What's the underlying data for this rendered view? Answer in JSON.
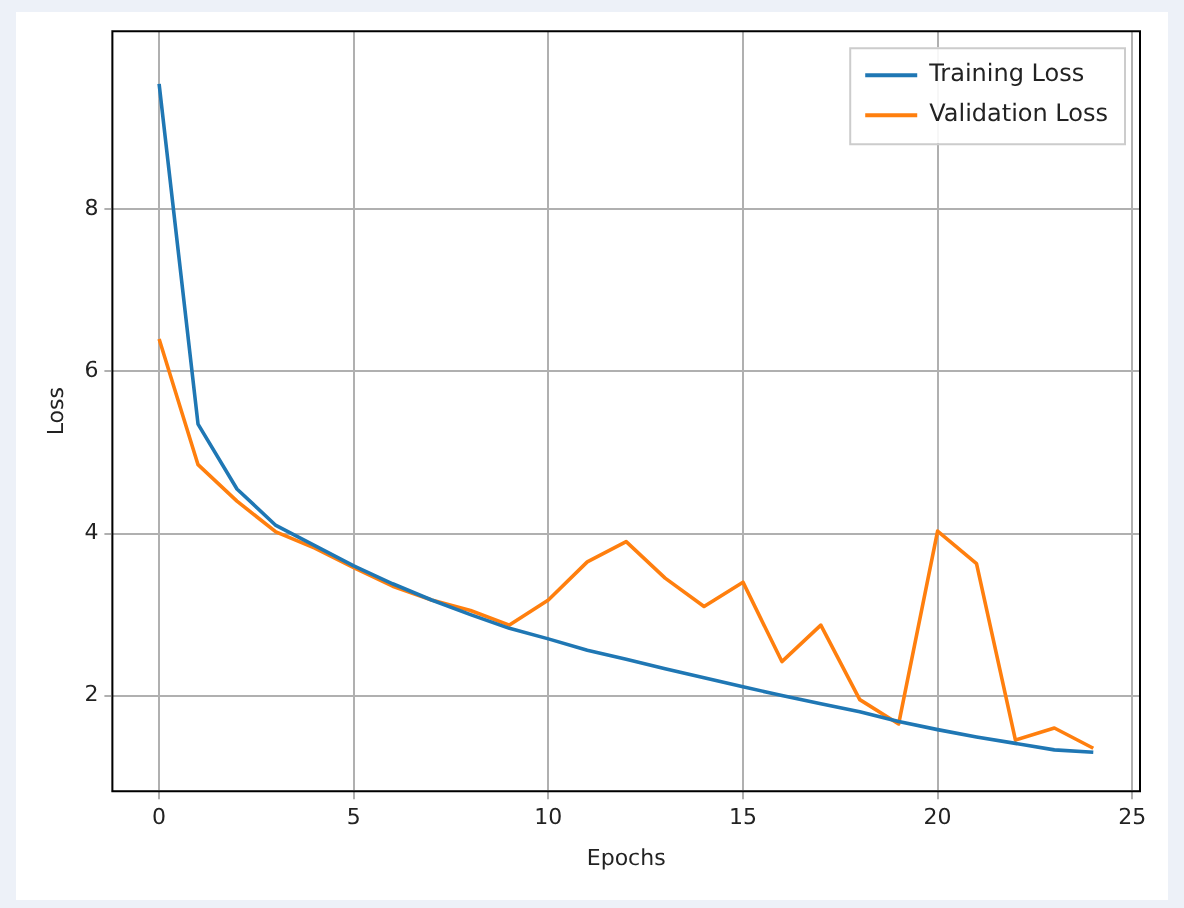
{
  "chart_data": {
    "type": "line",
    "xlabel": "Epochs",
    "ylabel": "Loss",
    "x": [
      0,
      1,
      2,
      3,
      4,
      5,
      6,
      7,
      8,
      9,
      10,
      11,
      12,
      13,
      14,
      15,
      16,
      17,
      18,
      19,
      20,
      21,
      22,
      23,
      24
    ],
    "series": [
      {
        "name": "Training Loss",
        "color": "#1f77b4",
        "values": [
          9.55,
          5.35,
          4.55,
          4.1,
          3.85,
          3.6,
          3.38,
          3.18,
          3.0,
          2.83,
          2.7,
          2.56,
          2.45,
          2.33,
          2.22,
          2.11,
          2.0,
          1.9,
          1.8,
          1.68,
          1.58,
          1.49,
          1.41,
          1.33,
          1.3
        ]
      },
      {
        "name": "Validation Loss",
        "color": "#ff7f0e",
        "values": [
          6.4,
          4.85,
          4.4,
          4.02,
          3.82,
          3.58,
          3.35,
          3.18,
          3.05,
          2.87,
          3.18,
          3.65,
          3.9,
          3.45,
          3.1,
          3.4,
          2.42,
          2.87,
          1.95,
          1.65,
          4.03,
          3.63,
          1.45,
          1.6,
          1.35
        ]
      }
    ],
    "xlim": [
      -1.2,
      25.2
    ],
    "xticks": [
      0,
      5,
      10,
      15,
      20,
      25
    ],
    "ylim": [
      0.82,
      10.2
    ],
    "yticks": [
      2,
      4,
      6,
      8
    ],
    "grid": true,
    "legend": "top right",
    "marker": "none",
    "line_style": "solid"
  }
}
